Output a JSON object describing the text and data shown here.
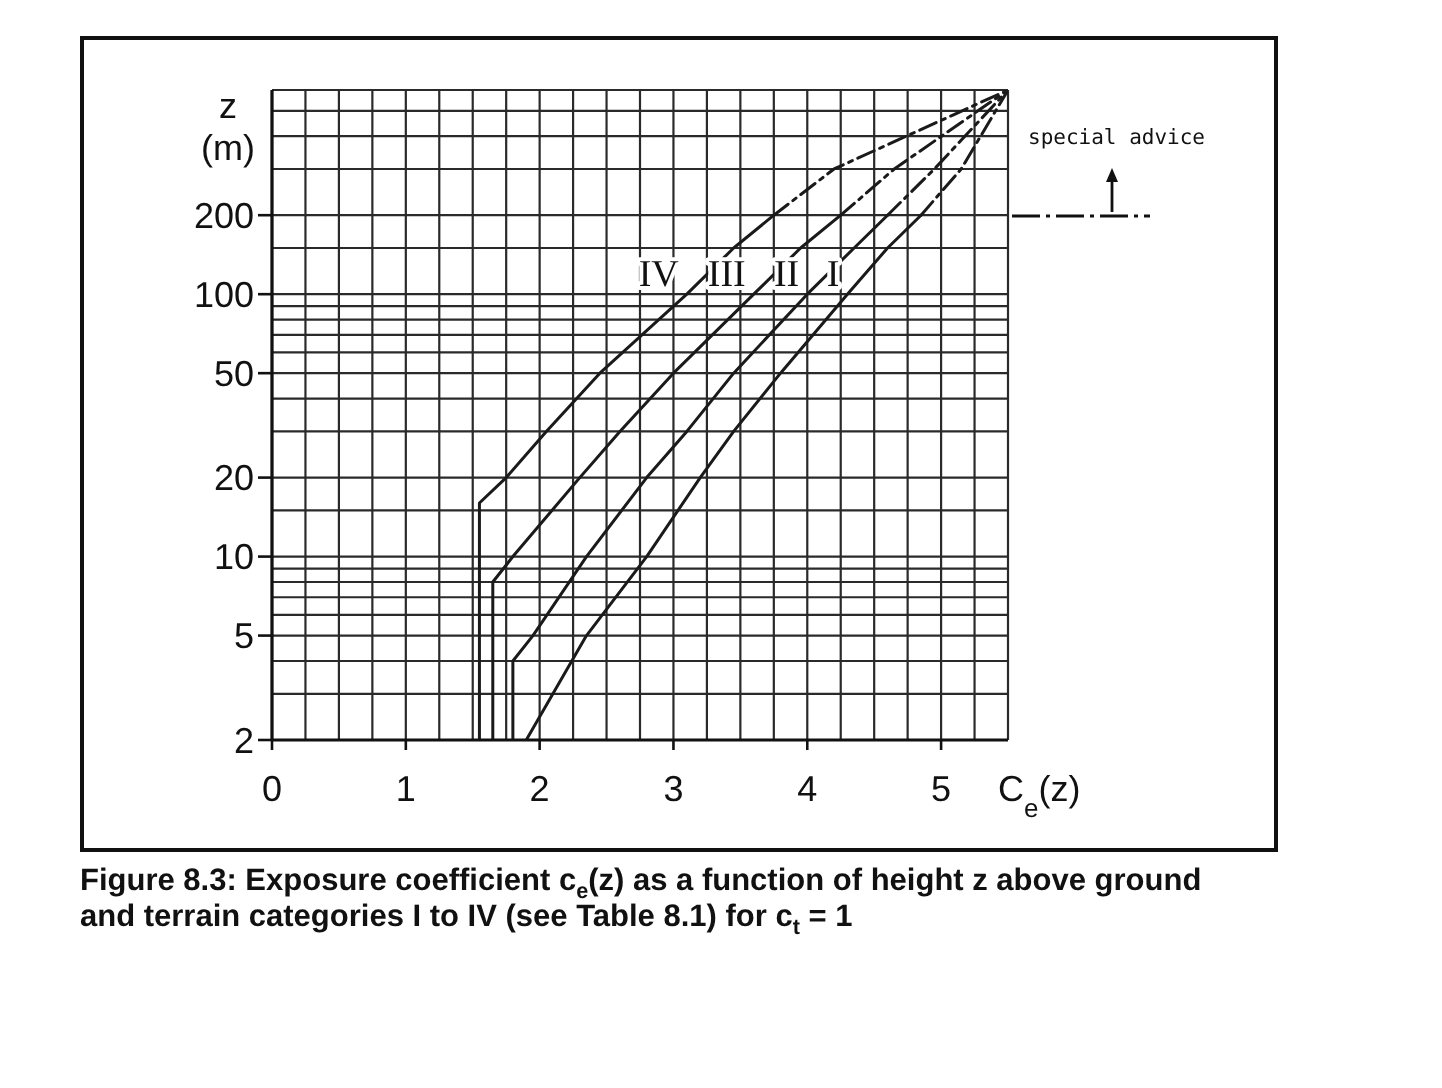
{
  "chart_data": {
    "type": "line",
    "xlabel": "C$_{e}$(z)",
    "ylabel": "z (m)",
    "annotations": [
      "special advice",
      "Figure 8.3: Exposure coefficient c$_{e}$(z) as a function of height z above ground and terrain categories I to IV (see Table 8.1) for c$_{t}$ = 1"
    ],
    "xlim": [
      0,
      5.5
    ],
    "xticks": [
      0,
      {
        "value": 0.25,
        "label": null
      },
      {
        "value": 0.5,
        "label": null
      },
      {
        "value": 0.75,
        "label": null
      },
      1,
      {
        "value": 1.25,
        "label": null
      },
      {
        "value": 1.5,
        "label": null
      },
      {
        "value": 1.75,
        "label": null
      },
      2,
      {
        "value": 2.25,
        "label": null
      },
      {
        "value": 2.5,
        "label": null
      },
      {
        "value": 2.75,
        "label": null
      },
      3,
      {
        "value": 3.25,
        "label": null
      },
      {
        "value": 3.5,
        "label": null
      },
      {
        "value": 3.75,
        "label": null
      },
      4,
      {
        "value": 4.25,
        "label": null
      },
      {
        "value": 4.5,
        "label": null
      },
      {
        "value": 4.75,
        "label": null
      },
      5,
      {
        "value": 5.25,
        "label": null
      },
      {
        "value": 5.5,
        "label": null
      }
    ],
    "ylim": [
      2,
      600
    ],
    "yticks": [
      2,
      {
        "value": 3,
        "label": null
      },
      {
        "value": 4,
        "label": null
      },
      5,
      {
        "value": 6,
        "label": null
      },
      {
        "value": 7,
        "label": null
      },
      {
        "value": 8,
        "label": null
      },
      {
        "value": 9,
        "label": null
      },
      10,
      {
        "value": 15,
        "label": null
      },
      20,
      {
        "value": 30,
        "label": null
      },
      {
        "value": 40,
        "label": null
      },
      50,
      {
        "value": 60,
        "label": null
      },
      {
        "value": 70,
        "label": null
      },
      {
        "value": 80,
        "label": null
      },
      {
        "value": 90,
        "label": null
      },
      100,
      {
        "value": 150,
        "label": null
      },
      200,
      {
        "value": 300,
        "label": null
      },
      {
        "value": 400,
        "label": null
      },
      {
        "value": 500,
        "label": null
      },
      {
        "value": 600,
        "label": null
      }
    ],
    "log": true,
    "grid": true,
    "line_style": "solid",
    "series": [
      {
        "name": "I",
        "color": "#1a1a1a",
        "x": [
          1.9,
          2.35,
          2.8,
          3.2,
          3.45,
          3.8,
          4.3,
          4.6,
          4.85
        ],
        "values": [
          2,
          5,
          10,
          20,
          30,
          50,
          100,
          150,
          200
        ]
      },
      {
        "name": "II",
        "color": "#1a1a1a",
        "x": [
          1.8,
          1.8,
          1.95,
          2.35,
          2.8,
          3.1,
          3.45,
          4.0,
          4.35,
          4.6
        ],
        "values": [
          2,
          4,
          5,
          10,
          20,
          30,
          50,
          100,
          150,
          200
        ]
      },
      {
        "name": "III",
        "color": "#1a1a1a",
        "x": [
          1.65,
          1.65,
          1.8,
          2.3,
          2.6,
          3.0,
          3.6,
          3.95,
          4.25
        ],
        "values": [
          2,
          8,
          10,
          20,
          30,
          50,
          100,
          150,
          200
        ]
      },
      {
        "name": "IV",
        "color": "#1a1a1a",
        "x": [
          1.55,
          1.55,
          1.75,
          2.05,
          2.45,
          3.1,
          3.45,
          3.75
        ],
        "values": [
          2,
          16,
          20,
          30,
          50,
          100,
          150,
          200
        ]
      },
      {
        "color": "#1a1a1a",
        "line_style": "dashed",
        "x": [
          4.85,
          5.15,
          5.5
        ],
        "values": [
          200,
          300,
          600
        ]
      },
      {
        "color": "#1a1a1a",
        "line_style": "dashed",
        "x": [
          4.6,
          4.95,
          5.5
        ],
        "values": [
          200,
          300,
          600
        ]
      },
      {
        "color": "#1a1a1a",
        "line_style": "dashed",
        "x": [
          4.25,
          4.65,
          5.5
        ],
        "values": [
          200,
          300,
          600
        ]
      },
      {
        "color": "#1a1a1a",
        "line_style": "dashed",
        "x": [
          3.75,
          4.2,
          5.5
        ],
        "values": [
          200,
          300,
          600
        ]
      }
    ]
  }
}
